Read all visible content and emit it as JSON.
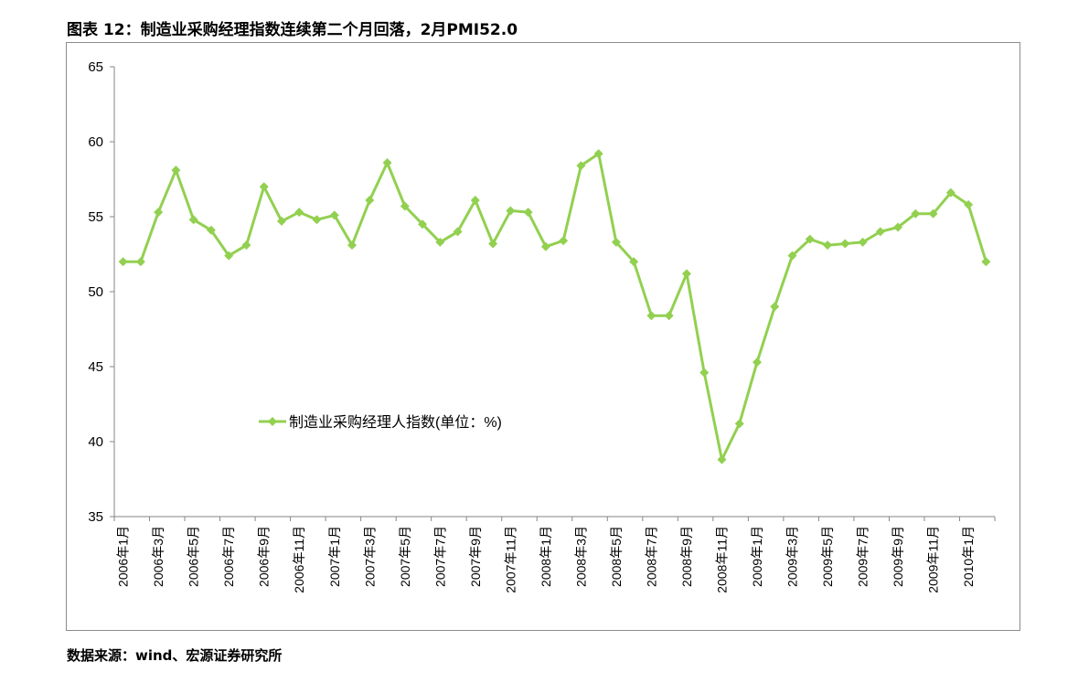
{
  "title": "图表 12：制造业采购经理指数连续第二个月回落，2月PMI52.0",
  "source": "数据来源：wind、宏源证券研究所",
  "colors": {
    "series": "#92d050",
    "axis": "#868686",
    "text": "#000000"
  },
  "chart_data": {
    "type": "line",
    "title": "",
    "xlabel": "",
    "ylabel": "",
    "ylim": [
      35,
      65
    ],
    "yticks": [
      35,
      40,
      45,
      50,
      55,
      60,
      65
    ],
    "grid": false,
    "legend_position": "center-left, inside plot",
    "marker": "diamond",
    "categories": [
      "2006年1月",
      "2006年2月",
      "2006年3月",
      "2006年4月",
      "2006年5月",
      "2006年6月",
      "2006年7月",
      "2006年8月",
      "2006年9月",
      "2006年10月",
      "2006年11月",
      "2006年12月",
      "2007年1月",
      "2007年2月",
      "2007年3月",
      "2007年4月",
      "2007年5月",
      "2007年6月",
      "2007年7月",
      "2007年8月",
      "2007年9月",
      "2007年10月",
      "2007年11月",
      "2007年12月",
      "2008年1月",
      "2008年2月",
      "2008年3月",
      "2008年4月",
      "2008年5月",
      "2008年6月",
      "2008年7月",
      "2008年8月",
      "2008年9月",
      "2008年10月",
      "2008年11月",
      "2008年12月",
      "2009年1月",
      "2009年2月",
      "2009年3月",
      "2009年4月",
      "2009年5月",
      "2009年6月",
      "2009年7月",
      "2009年8月",
      "2009年9月",
      "2009年10月",
      "2009年11月",
      "2009年12月",
      "2010年1月",
      "2010年2月"
    ],
    "tick_labels": [
      "2006年1月",
      "2006年3月",
      "2006年5月",
      "2006年7月",
      "2006年9月",
      "2006年11月",
      "2007年1月",
      "2007年3月",
      "2007年5月",
      "2007年7月",
      "2007年9月",
      "2007年11月",
      "2008年1月",
      "2008年3月",
      "2008年5月",
      "2008年7月",
      "2008年9月",
      "2008年11月",
      "2009年1月",
      "2009年3月",
      "2009年5月",
      "2009年7月",
      "2009年9月",
      "2009年11月",
      "2010年1月"
    ],
    "series": [
      {
        "name": "制造业采购经理人指数(单位：%)",
        "values": [
          52.0,
          52.0,
          55.3,
          58.1,
          54.8,
          54.1,
          52.4,
          53.1,
          57.0,
          54.7,
          55.3,
          54.8,
          55.1,
          53.1,
          56.1,
          58.6,
          55.7,
          54.5,
          53.3,
          54.0,
          56.1,
          53.2,
          55.4,
          55.3,
          53.0,
          53.4,
          58.4,
          59.2,
          53.3,
          52.0,
          48.4,
          48.4,
          51.2,
          44.6,
          38.8,
          41.2,
          45.3,
          49.0,
          52.4,
          53.5,
          53.1,
          53.2,
          53.3,
          54.0,
          54.3,
          55.2,
          55.2,
          56.6,
          55.8,
          52.0
        ]
      }
    ]
  }
}
